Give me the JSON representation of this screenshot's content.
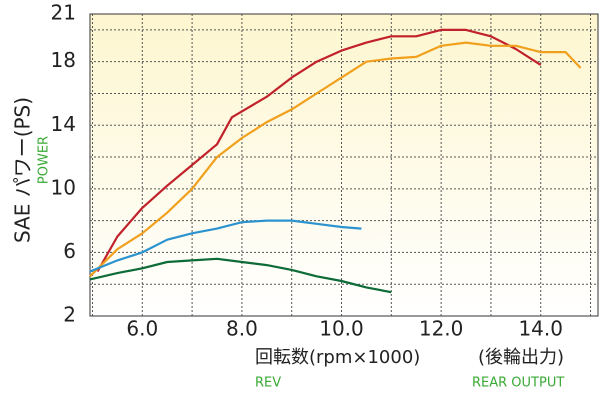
{
  "chart_data": {
    "type": "line",
    "y_label": "SAE パワー(PS)",
    "y_label_sub": "POWER",
    "x_label": "回転数(rpm×1000)",
    "x_label_note": "(後輪出力)",
    "x_label_sub": "REV",
    "x_label_note_sub": "REAR OUTPUT",
    "xlim": [
      4.95,
      15.15
    ],
    "ylim": [
      2,
      21
    ],
    "xticks": [
      {
        "value": 6,
        "label": "6.0"
      },
      {
        "value": 8,
        "label": "8.0"
      },
      {
        "value": 10,
        "label": "10.0"
      },
      {
        "value": 12,
        "label": "12.0"
      },
      {
        "value": 14,
        "label": "14.0"
      }
    ],
    "yticks": [
      2,
      6,
      10,
      14,
      18,
      21
    ],
    "x_minor_grid": [
      5,
      7,
      9,
      11,
      13,
      15
    ],
    "y_minor_grid": [
      4,
      8,
      12,
      16,
      20
    ],
    "grid": true,
    "series": [
      {
        "color": "#c0212a",
        "x": [
          5.1,
          5.5,
          6,
          6.5,
          7,
          7.5,
          7.8,
          8.5,
          9,
          9.5,
          10,
          10.5,
          11,
          11.5,
          12,
          12.5,
          13,
          13.5,
          14
        ],
        "values": [
          4.8,
          7,
          8.8,
          10.2,
          11.5,
          12.8,
          14.5,
          15.8,
          17,
          18,
          18.7,
          19.2,
          19.6,
          19.6,
          20,
          20,
          19.6,
          18.8,
          17.8
        ]
      },
      {
        "color": "#f0a01c",
        "x": [
          4.95,
          5.5,
          6,
          6.5,
          7,
          7.5,
          8,
          8.5,
          9,
          9.5,
          10,
          10.5,
          11,
          11.5,
          12,
          12.5,
          13,
          13.5,
          14,
          14.5,
          14.8
        ],
        "values": [
          4.5,
          6.2,
          7.2,
          8.5,
          10,
          12,
          13.2,
          14.2,
          15,
          16,
          17,
          18,
          18.2,
          18.3,
          19,
          19.2,
          19,
          19,
          18.6,
          18.6,
          17.6
        ]
      },
      {
        "color": "#2b93cf",
        "x": [
          4.95,
          5.5,
          6,
          6.5,
          7,
          7.5,
          8,
          8.5,
          9,
          9.5,
          10,
          10.4
        ],
        "values": [
          4.8,
          5.5,
          6,
          6.8,
          7.2,
          7.5,
          7.9,
          8,
          8,
          7.8,
          7.6,
          7.5
        ]
      },
      {
        "color": "#0c6b37",
        "x": [
          4.95,
          5.5,
          6,
          6.5,
          7,
          7.5,
          8,
          8.5,
          9,
          9.5,
          10,
          10.5,
          11
        ],
        "values": [
          4.3,
          4.7,
          5,
          5.4,
          5.5,
          5.6,
          5.4,
          5.2,
          4.9,
          4.5,
          4.2,
          3.8,
          3.5
        ]
      }
    ]
  }
}
